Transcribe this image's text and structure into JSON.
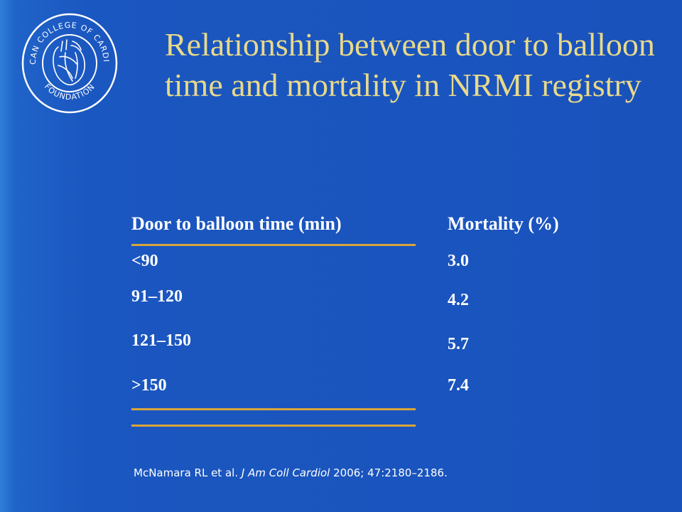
{
  "title": "Relationship between door to balloon time and mortality in NRMI registry",
  "logo": {
    "ring_text": "AMERICAN COLLEGE OF CARDIOLOGY",
    "bottom_text": "FOUNDATION",
    "icon": "heart-logo-icon"
  },
  "table": {
    "headers": [
      "Door to balloon time (min)",
      "Mortality (%)"
    ],
    "rows": [
      {
        "time": "<90",
        "mortality": "3.0"
      },
      {
        "time": "91–120",
        "mortality": "4.2"
      },
      {
        "time": "121–150",
        "mortality": "5.7"
      },
      {
        "time": ">150",
        "mortality": "7.4"
      }
    ]
  },
  "citation": {
    "authors": "McNamara RL et al.",
    "journal": "J Am Coll Cardiol",
    "details": "2006; 47:2180–2186."
  },
  "colors": {
    "background": "#1a52bc",
    "title": "#e8d98a",
    "rule": "#d9a53a",
    "text": "#ffffff"
  }
}
